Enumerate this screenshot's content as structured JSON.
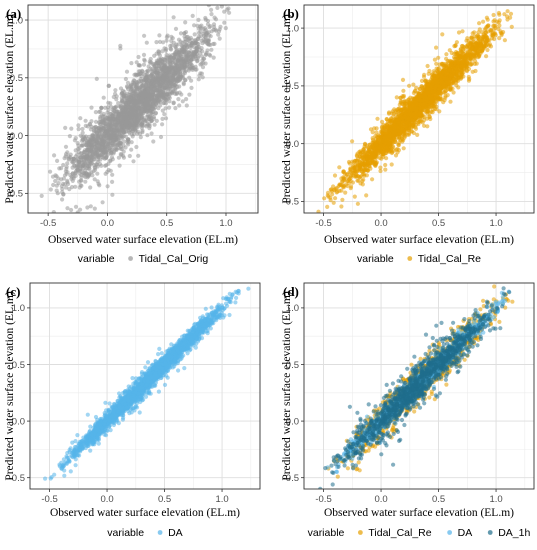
{
  "chart_data": [
    {
      "type": "scatter",
      "panel_label": "(a)",
      "xlabel": "Observed water surface elevation (EL.m)",
      "ylabel": "Predicted water surface elevation (EL.m)",
      "xlim": [
        -0.67,
        1.27
      ],
      "ylim": [
        -0.67,
        1.13
      ],
      "xticks": [
        -0.5,
        0.0,
        0.5,
        1.0
      ],
      "yticks": [
        -0.5,
        0.0,
        0.5,
        1.0
      ],
      "xtick_labels": [
        "-0.5",
        "0.0",
        "0.5",
        "1.0"
      ],
      "ytick_labels": [
        "-0.5",
        "0.0",
        "0.5",
        "1.0"
      ],
      "grid": true,
      "legend": {
        "placement": "bottom",
        "title": "variable",
        "entries": [
          "Tidal_Cal_Orig"
        ]
      },
      "series": [
        {
          "name": "Tidal_Cal_Orig",
          "color": "#999999",
          "n_points": 2600,
          "x_range": [
            -0.6,
            1.1
          ],
          "slope": 1.0,
          "intercept": 0.0,
          "spread": 0.14
        }
      ]
    },
    {
      "type": "scatter",
      "panel_label": "(b)",
      "xlabel": "Observed water surface elevation (EL.m)",
      "ylabel": "Predicted water surface elevation (EL.m)",
      "xlim": [
        -0.67,
        1.33
      ],
      "ylim": [
        -0.6,
        1.2
      ],
      "xticks": [
        -0.5,
        0.0,
        0.5,
        1.0
      ],
      "yticks": [
        -0.5,
        0.0,
        0.5,
        1.0
      ],
      "xtick_labels": [
        "-0.5",
        "0.0",
        "0.5",
        "1.0"
      ],
      "ytick_labels": [
        "-0.5",
        "0.0",
        "0.5",
        "1.0"
      ],
      "grid": true,
      "legend": {
        "placement": "bottom",
        "title": "variable",
        "entries": [
          "Tidal_Cal_Re"
        ]
      },
      "series": [
        {
          "name": "Tidal_Cal_Re",
          "color": "#E69F00",
          "n_points": 2600,
          "x_range": [
            -0.58,
            1.22
          ],
          "slope": 1.0,
          "intercept": 0.0,
          "spread": 0.08
        }
      ]
    },
    {
      "type": "scatter",
      "panel_label": "(c)",
      "xlabel": "Observed water surface elevation (EL.m)",
      "ylabel": "Predicted water surface elevation (EL.m)",
      "xlim": [
        -0.67,
        1.33
      ],
      "ylim": [
        -0.6,
        1.22
      ],
      "xticks": [
        -0.5,
        0.0,
        0.5,
        1.0
      ],
      "yticks": [
        -0.5,
        0.0,
        0.5,
        1.0
      ],
      "xtick_labels": [
        "-0.5",
        "0.0",
        "0.5",
        "1.0"
      ],
      "ytick_labels": [
        "-0.5",
        "0.0",
        "0.5",
        "1.0"
      ],
      "grid": true,
      "legend": {
        "placement": "bottom",
        "title": "variable",
        "entries": [
          "DA"
        ]
      },
      "series": [
        {
          "name": "DA",
          "color": "#56B4E9",
          "n_points": 2600,
          "x_range": [
            -0.58,
            1.25
          ],
          "slope": 1.0,
          "intercept": 0.0,
          "spread": 0.045
        }
      ]
    },
    {
      "type": "scatter",
      "panel_label": "(d)",
      "xlabel": "Observed water surface elevation (EL.m)",
      "ylabel": "Predicted water surface elevation (EL.m)",
      "xlim": [
        -0.67,
        1.33
      ],
      "ylim": [
        -0.6,
        1.22
      ],
      "xticks": [
        -0.5,
        0.0,
        0.5,
        1.0
      ],
      "yticks": [
        -0.5,
        0.0,
        0.5,
        1.0
      ],
      "xtick_labels": [
        "-0.5",
        "0.0",
        "0.5",
        "1.0"
      ],
      "ytick_labels": [
        "-0.5",
        "0.0",
        "0.5",
        "1.0"
      ],
      "grid": true,
      "legend": {
        "placement": "bottom",
        "title": "variable",
        "entries": [
          "Tidal_Cal_Re",
          "DA",
          "DA_1h"
        ]
      },
      "series": [
        {
          "name": "Tidal_Cal_Re",
          "color": "#E69F00",
          "n_points": 1100,
          "x_range": [
            -0.58,
            1.22
          ],
          "slope": 1.0,
          "intercept": 0.0,
          "spread": 0.08
        },
        {
          "name": "DA",
          "color": "#56B4E9",
          "n_points": 1100,
          "x_range": [
            -0.58,
            1.25
          ],
          "slope": 1.0,
          "intercept": 0.0,
          "spread": 0.045
        },
        {
          "name": "DA_1h",
          "color": "#1F6E8C",
          "n_points": 1100,
          "x_range": [
            -0.58,
            1.2
          ],
          "slope": 1.0,
          "intercept": 0.0,
          "spread": 0.1
        }
      ]
    }
  ]
}
